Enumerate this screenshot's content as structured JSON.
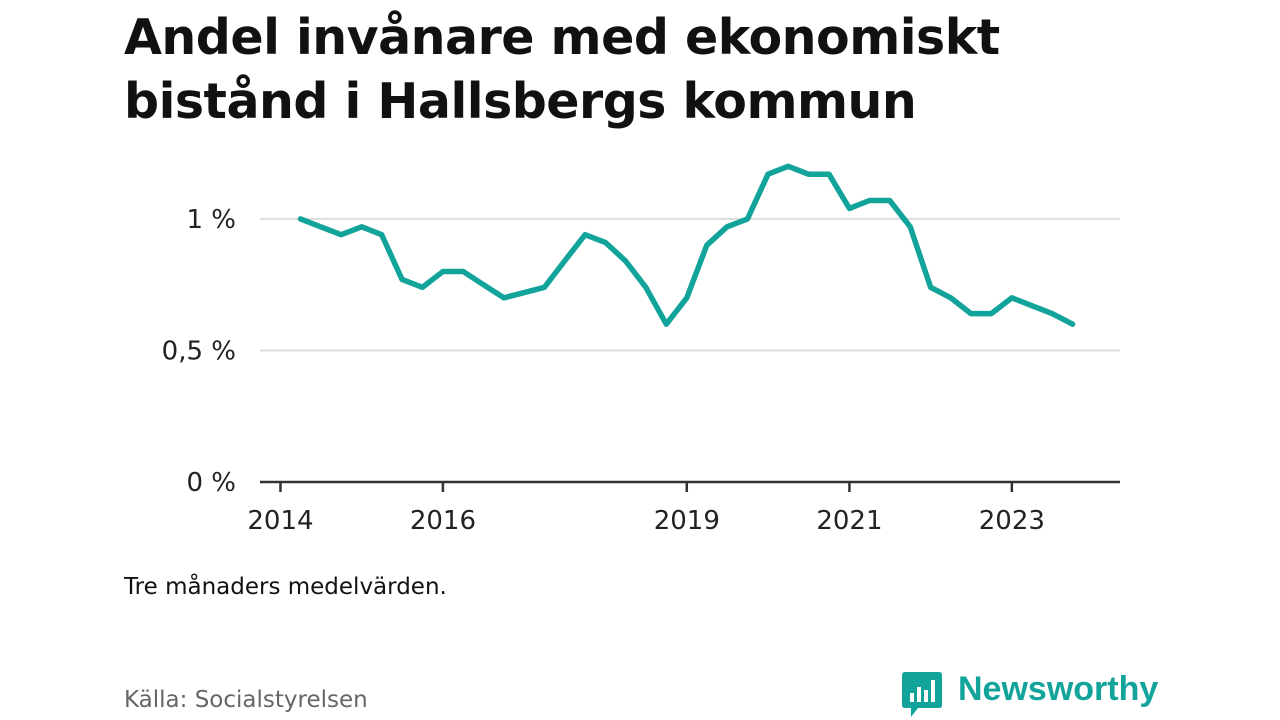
{
  "title": "Andel invånare med ekonomiskt bistånd i Hallsbergs kommun",
  "note": "Tre månaders medelvärden.",
  "source": "Källa: Socialstyrelsen",
  "brand": {
    "name": "Newsworthy",
    "logo_icon": "bar-chart-speech-bubble-icon",
    "color": "#12a49b"
  },
  "colors": {
    "line": "#12a49b",
    "grid": "#dddddd",
    "axis": "#333333"
  },
  "chart_data": {
    "type": "line",
    "title": "Andel invånare med ekonomiskt bistånd i Hallsbergs kommun",
    "xlabel": "",
    "ylabel": "",
    "unit": "%",
    "ylim": [
      0,
      1.3
    ],
    "yticks": [
      0,
      0.5,
      1
    ],
    "ytick_labels": [
      "0 %",
      "0,5 %",
      "1 %"
    ],
    "xlim": [
      "2013-10-01",
      "2024-05-01"
    ],
    "xticks": [
      "2014-01-01",
      "2016-01-01",
      "2019-01-01",
      "2021-01-01",
      "2023-01-01"
    ],
    "xtick_labels": [
      "2014",
      "2016",
      "2019",
      "2021",
      "2023"
    ],
    "grid": true,
    "legend": "none",
    "series": [
      {
        "name": "",
        "points": [
          [
            "2014-04-01",
            1.0
          ],
          [
            "2014-07-01",
            0.97
          ],
          [
            "2014-10-01",
            0.94
          ],
          [
            "2015-01-01",
            0.97
          ],
          [
            "2015-04-01",
            0.94
          ],
          [
            "2015-07-01",
            0.77
          ],
          [
            "2015-10-01",
            0.74
          ],
          [
            "2016-01-01",
            0.8
          ],
          [
            "2016-04-01",
            0.8
          ],
          [
            "2016-07-01",
            0.75
          ],
          [
            "2016-10-01",
            0.7
          ],
          [
            "2017-01-01",
            0.72
          ],
          [
            "2017-04-01",
            0.74
          ],
          [
            "2017-07-01",
            0.84
          ],
          [
            "2017-10-01",
            0.94
          ],
          [
            "2018-01-01",
            0.91
          ],
          [
            "2018-04-01",
            0.84
          ],
          [
            "2018-07-01",
            0.74
          ],
          [
            "2018-10-01",
            0.6
          ],
          [
            "2019-01-01",
            0.7
          ],
          [
            "2019-04-01",
            0.9
          ],
          [
            "2019-07-01",
            0.97
          ],
          [
            "2019-10-01",
            1.0
          ],
          [
            "2020-01-01",
            1.17
          ],
          [
            "2020-04-01",
            1.2
          ],
          [
            "2020-07-01",
            1.17
          ],
          [
            "2020-10-01",
            1.17
          ],
          [
            "2021-01-01",
            1.04
          ],
          [
            "2021-04-01",
            1.07
          ],
          [
            "2021-07-01",
            1.07
          ],
          [
            "2021-10-01",
            0.97
          ],
          [
            "2022-01-01",
            0.74
          ],
          [
            "2022-04-01",
            0.7
          ],
          [
            "2022-07-01",
            0.64
          ],
          [
            "2022-10-01",
            0.64
          ],
          [
            "2023-01-01",
            0.7
          ],
          [
            "2023-04-01",
            0.67
          ],
          [
            "2023-07-01",
            0.64
          ],
          [
            "2023-10-01",
            0.6
          ]
        ]
      }
    ]
  }
}
